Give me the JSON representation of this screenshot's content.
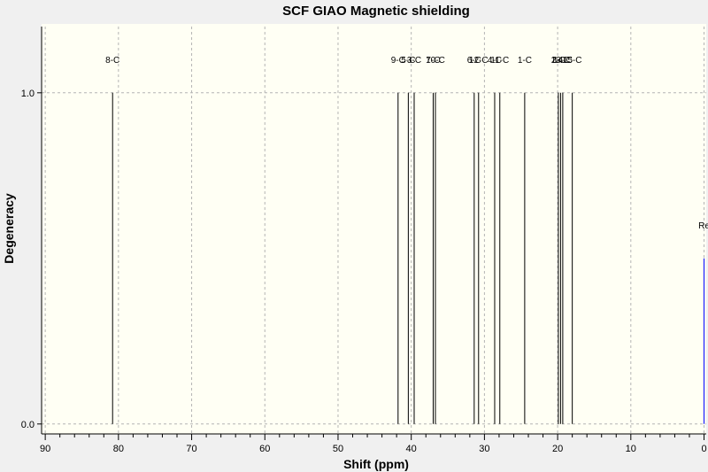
{
  "chart_data": {
    "type": "bar",
    "title": "SCF GIAO Magnetic shielding",
    "xlabel": "Shift (ppm)",
    "ylabel": "Degeneracy",
    "xlim": [
      90.5,
      -0.3
    ],
    "ylim": [
      -0.03,
      1.2
    ],
    "x_ticks": [
      90,
      80,
      70,
      60,
      50,
      40,
      30,
      20,
      10,
      0
    ],
    "y_ticks": [
      {
        "value": 0.0,
        "label": "0.0"
      },
      {
        "value": 1.0,
        "label": "1.0"
      }
    ],
    "grid": true,
    "series": [
      {
        "color": "#000000",
        "peaks": [
          {
            "label": "8-C",
            "x": 80.8,
            "y": 1.0
          },
          {
            "label": "9-C",
            "x": 41.8,
            "y": 1.0
          },
          {
            "label": "5-C",
            "x": 40.4,
            "y": 1.0
          },
          {
            "label": "3-C",
            "x": 39.6,
            "y": 1.0
          },
          {
            "label": "7-C",
            "x": 37.0,
            "y": 1.0
          },
          {
            "label": "10-C",
            "x": 36.7,
            "y": 1.0
          },
          {
            "label": "6-C",
            "x": 31.4,
            "y": 1.0
          },
          {
            "label": "12-C",
            "x": 30.8,
            "y": 1.0
          },
          {
            "label": "4-C",
            "x": 28.6,
            "y": 1.0
          },
          {
            "label": "11-C",
            "x": 27.9,
            "y": 1.0
          },
          {
            "label": "1-C",
            "x": 24.5,
            "y": 1.0
          },
          {
            "label": "2-C",
            "x": 19.9,
            "y": 1.0
          },
          {
            "label": "13-C",
            "x": 19.6,
            "y": 1.0
          },
          {
            "label": "14-C",
            "x": 19.3,
            "y": 1.0
          },
          {
            "label": "15-C",
            "x": 18.0,
            "y": 1.0
          }
        ]
      },
      {
        "color": "#0000ff",
        "peaks": [
          {
            "label": "Re",
            "x": 0.0,
            "y": 0.5
          }
        ]
      }
    ],
    "colors": {
      "plot_background": "#fffff4",
      "outer_background": "#f0f0f0",
      "grid": "#b4b4b4",
      "reference": "#0000ff"
    }
  }
}
